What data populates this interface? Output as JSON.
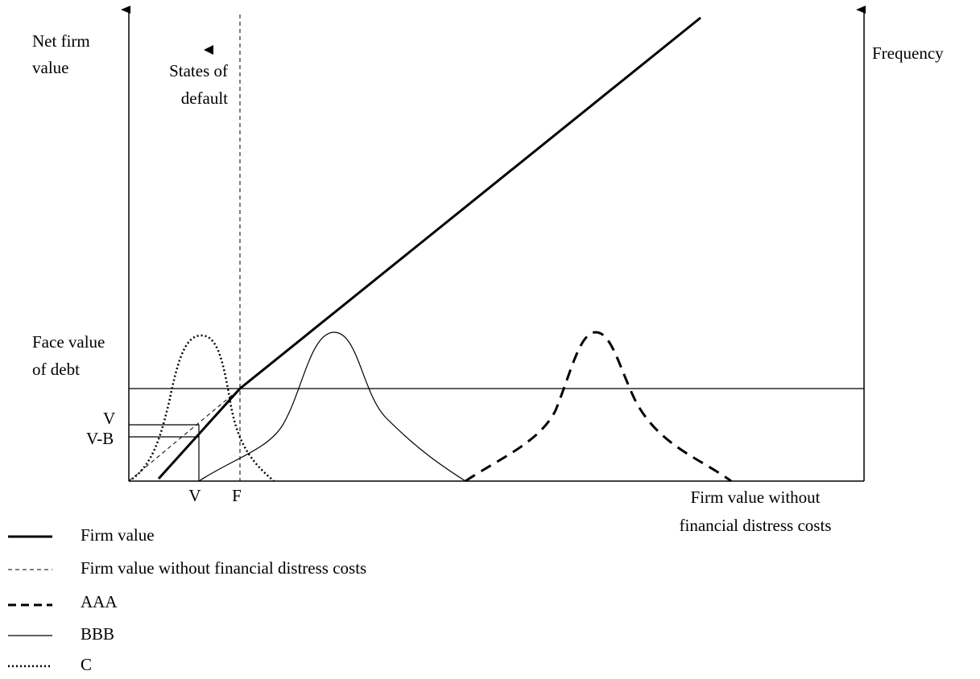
{
  "y_axis_label": [
    "Net firm",
    "value"
  ],
  "default_label": [
    "States of",
    "default"
  ],
  "y2_axis_label": "Frequency",
  "face_value_label": [
    "Face value",
    "of debt"
  ],
  "y_marks": [
    "V",
    "V-B"
  ],
  "x_marks": [
    "V",
    "F"
  ],
  "x_axis_label": [
    "Firm value without",
    "financial distress costs"
  ],
  "legend": [
    "Firm value",
    "Firm value without financial distress costs",
    "AAA",
    "BBB",
    "C"
  ]
}
